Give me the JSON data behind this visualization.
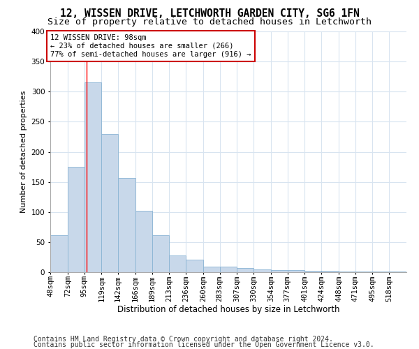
{
  "title1": "12, WISSEN DRIVE, LETCHWORTH GARDEN CITY, SG6 1FN",
  "title2": "Size of property relative to detached houses in Letchworth",
  "xlabel": "Distribution of detached houses by size in Letchworth",
  "ylabel": "Number of detached properties",
  "bar_color": "#c8d8ea",
  "bar_edge_color": "#8ab4d4",
  "redline_x": 98,
  "categories": [
    "48sqm",
    "72sqm",
    "95sqm",
    "119sqm",
    "142sqm",
    "166sqm",
    "189sqm",
    "213sqm",
    "236sqm",
    "260sqm",
    "283sqm",
    "307sqm",
    "330sqm",
    "354sqm",
    "377sqm",
    "401sqm",
    "424sqm",
    "448sqm",
    "471sqm",
    "495sqm",
    "518sqm"
  ],
  "bin_edges": [
    48,
    72,
    95,
    119,
    142,
    166,
    189,
    213,
    236,
    260,
    283,
    307,
    330,
    354,
    377,
    401,
    424,
    448,
    471,
    495,
    518,
    542
  ],
  "values": [
    62,
    175,
    315,
    230,
    157,
    102,
    61,
    28,
    21,
    9,
    9,
    7,
    5,
    4,
    3,
    2,
    2,
    1,
    1,
    1,
    1
  ],
  "annotation_text": "12 WISSEN DRIVE: 98sqm\n← 23% of detached houses are smaller (266)\n77% of semi-detached houses are larger (916) →",
  "footer1": "Contains HM Land Registry data © Crown copyright and database right 2024.",
  "footer2": "Contains public sector information licensed under the Open Government Licence v3.0.",
  "ylim": [
    0,
    400
  ],
  "bg_color": "#ffffff",
  "grid_color": "#d8e4f0",
  "title1_fontsize": 10.5,
  "title2_fontsize": 9.5,
  "xlabel_fontsize": 8.5,
  "ylabel_fontsize": 8,
  "tick_fontsize": 7.5,
  "footer_fontsize": 7
}
